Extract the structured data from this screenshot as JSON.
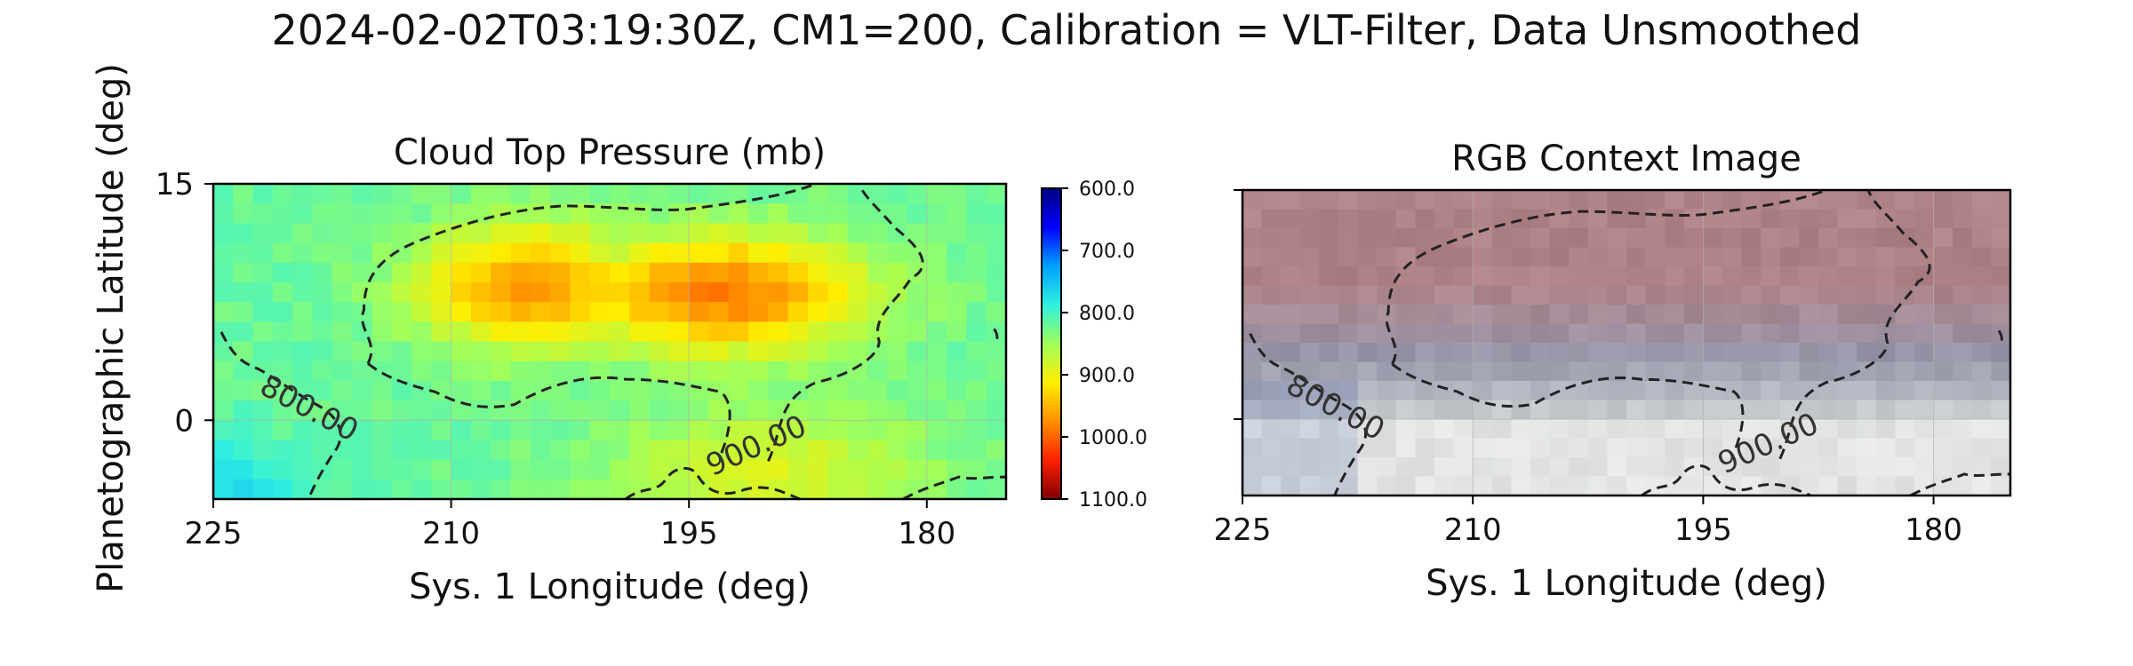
{
  "figure": {
    "title": "2024-02-02T03:19:30Z, CM1=200, Calibration = VLT-Filter, Data Unsmoothed"
  },
  "chart_data": [
    {
      "type": "heatmap",
      "title": "Cloud Top Pressure (mb)",
      "xlabel": "Sys. 1 Longitude (deg)",
      "ylabel": "Planetographic Latitude (deg)",
      "xlim": [
        225,
        175
      ],
      "ylim": [
        -5,
        15
      ],
      "x_ticks": [
        225,
        210,
        195,
        180
      ],
      "y_ticks": [
        15,
        0
      ],
      "grid": true,
      "colormap": "jet_r",
      "colorbar": {
        "range": [
          600,
          1100
        ],
        "ticks": [
          "600.0",
          "700.0",
          "800.0",
          "900.0",
          "1000.0",
          "1100.0"
        ],
        "colors": [
          "#00007f",
          "#0000ff",
          "#00a0ff",
          "#2ff0e0",
          "#a0ff5a",
          "#ffee00",
          "#ff9000",
          "#ff2000",
          "#7f0000"
        ]
      },
      "contours": [
        {
          "level": 800,
          "label": "800.00",
          "style": "dashed"
        },
        {
          "level": 900,
          "label": "900.00",
          "style": "dashed"
        }
      ],
      "field_description": {
        "max_pressure_mb": 985,
        "max_location": {
          "lon": 193,
          "lat": 8
        },
        "min_pressure_mb": 775,
        "min_location": {
          "lon": 224,
          "lat": -4
        }
      }
    },
    {
      "type": "heatmap",
      "title": "RGB Context Image",
      "xlabel": "Sys. 1 Longitude (deg)",
      "xlim": [
        225,
        175
      ],
      "ylim": [
        -5,
        15
      ],
      "x_ticks": [
        225,
        210,
        195,
        180
      ],
      "y_ticks": [
        15,
        0
      ],
      "y_ticklabels_visible": false,
      "grid": true,
      "contours": [
        {
          "level": 800,
          "label": "800.00",
          "style": "dashed"
        },
        {
          "level": 900,
          "label": "900.00",
          "style": "dashed"
        }
      ]
    }
  ]
}
